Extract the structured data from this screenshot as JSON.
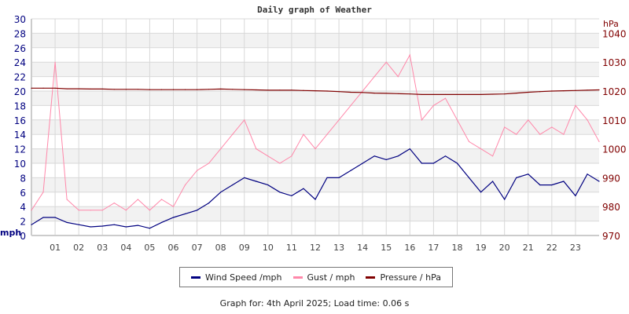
{
  "chart_data": {
    "type": "line",
    "title": "Daily graph of Weather",
    "x_ticks": [
      "01",
      "02",
      "03",
      "04",
      "05",
      "06",
      "07",
      "08",
      "09",
      "10",
      "11",
      "12",
      "13",
      "14",
      "15",
      "16",
      "17",
      "18",
      "19",
      "20",
      "21",
      "22",
      "23"
    ],
    "xlim": [
      0,
      24
    ],
    "left_axis": {
      "label": "mph",
      "ylim": [
        0,
        30
      ],
      "ticks": [
        0,
        2,
        4,
        6,
        8,
        10,
        12,
        14,
        16,
        18,
        20,
        22,
        24,
        26,
        28,
        30
      ],
      "color": "#000080"
    },
    "right_axis": {
      "label": "hPa",
      "ylim": [
        970,
        1045
      ],
      "ticks": [
        970,
        980,
        990,
        1000,
        1010,
        1020,
        1030,
        1040
      ],
      "color": "#800000"
    },
    "grid": true,
    "x_hours": [
      0,
      0.5,
      1,
      1.5,
      2,
      2.5,
      3,
      3.5,
      4,
      4.5,
      5,
      5.5,
      6,
      6.5,
      7,
      7.5,
      8,
      8.5,
      9,
      9.5,
      10,
      10.5,
      11,
      11.5,
      12,
      12.5,
      13,
      13.5,
      14,
      14.5,
      15,
      15.5,
      16,
      16.5,
      17,
      17.5,
      18,
      18.5,
      19,
      19.5,
      20,
      20.5,
      21,
      21.5,
      22,
      22.5,
      23,
      23.5,
      24
    ],
    "series": [
      {
        "name": "Wind Speed /mph",
        "axis": "left",
        "color": "#000080",
        "values": [
          1.5,
          2.5,
          2.5,
          1.8,
          1.5,
          1.2,
          1.3,
          1.5,
          1.2,
          1.4,
          1.0,
          1.8,
          2.5,
          3.0,
          3.5,
          4.5,
          6,
          7,
          8,
          7.5,
          7,
          6,
          5.5,
          6.5,
          5,
          8,
          8,
          9,
          10,
          11,
          10.5,
          11,
          12,
          10,
          10,
          11,
          10,
          8,
          6,
          7.5,
          5,
          8,
          8.5,
          7,
          7,
          7.5,
          5.5,
          8.5,
          7.5
        ]
      },
      {
        "name": "Gust / mph",
        "axis": "left",
        "color": "#ff88aa",
        "values": [
          3.5,
          6,
          24,
          5,
          3.5,
          3.5,
          3.5,
          4.5,
          3.5,
          5,
          3.5,
          5,
          4,
          7,
          9,
          10,
          12,
          14,
          16,
          12,
          11,
          10,
          11,
          14,
          12,
          14,
          16,
          18,
          20,
          22,
          24,
          22,
          25,
          16,
          18,
          19,
          16,
          13,
          12,
          11,
          15,
          14,
          16,
          14,
          15,
          14,
          18,
          16,
          13
        ]
      },
      {
        "name": "Pressure / hPa",
        "axis": "right",
        "color": "#800000",
        "values": [
          1021,
          1021,
          1021,
          1020.8,
          1020.8,
          1020.7,
          1020.7,
          1020.6,
          1020.6,
          1020.6,
          1020.5,
          1020.5,
          1020.5,
          1020.5,
          1020.5,
          1020.6,
          1020.7,
          1020.6,
          1020.5,
          1020.4,
          1020.3,
          1020.3,
          1020.3,
          1020.2,
          1020.1,
          1020,
          1019.8,
          1019.6,
          1019.5,
          1019.3,
          1019.2,
          1019.1,
          1019,
          1018.8,
          1018.8,
          1018.8,
          1018.8,
          1018.8,
          1018.8,
          1018.9,
          1019,
          1019.3,
          1019.6,
          1019.8,
          1020,
          1020.1,
          1020.2,
          1020.3,
          1020.4
        ]
      }
    ]
  },
  "footer": "Graph for: 4th April 2025; Load time: 0.06 s"
}
